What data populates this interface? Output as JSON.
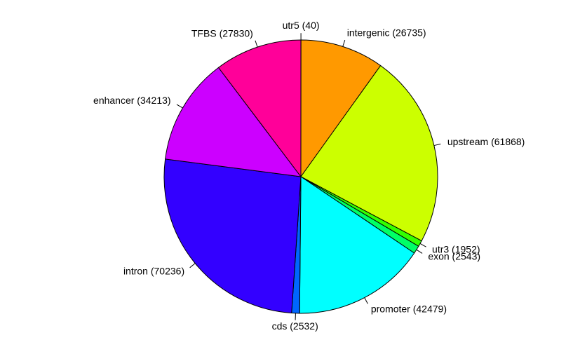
{
  "chart_data": {
    "type": "pie",
    "categories": [
      "utr5 (40)",
      "intergenic (26735)",
      "upstream (61868)",
      "utr3 (1952)",
      "exon (2543)",
      "promoter (42479)",
      "cds (2532)",
      "intron (70236)",
      "enhancer (34213)",
      "TFBS (27830)"
    ],
    "values": [
      40,
      26735,
      61868,
      1952,
      2543,
      42479,
      2532,
      70236,
      34213,
      27830
    ],
    "colors": [
      "#FF0000",
      "#FF9900",
      "#CCFF00",
      "#33FF00",
      "#00FF66",
      "#00FFFF",
      "#0066FF",
      "#3300FF",
      "#CC00FF",
      "#FF0099"
    ],
    "clockwise": true
  }
}
